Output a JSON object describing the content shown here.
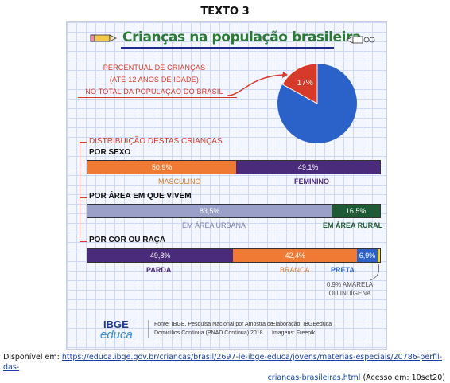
{
  "heading": "TEXTO 3",
  "infographic": {
    "title": "Crianças na população brasileira",
    "pct_label_lines": [
      "PERCENTUAL DE CRIANÇAS",
      "(ATÉ 12 ANOS DE IDADE)",
      "NO TOTAL DA POPULAÇÃO DO BRASIL"
    ],
    "pie": {
      "children_pct": 17,
      "label": "17%",
      "colors": {
        "children": "#d63a2a",
        "rest": "#2b62c9"
      }
    },
    "dist_label": "DISTRIBUIÇÃO DESTAS CRIANÇAS",
    "by_sex": {
      "title": "POR SEXO",
      "segments": [
        {
          "value_label": "50,9%",
          "value": 50.9,
          "name": "MASCULINO",
          "color": "#f07a33"
        },
        {
          "value_label": "49,1%",
          "value": 49.1,
          "name": "FEMININO",
          "color": "#4a2a7a"
        }
      ]
    },
    "by_area": {
      "title": "POR ÁREA EM QUE VIVEM",
      "segments": [
        {
          "value_label": "83,5%",
          "value": 83.5,
          "name": "EM ÁREA URBANA",
          "color": "#9aa0c8"
        },
        {
          "value_label": "16,5%",
          "value": 16.5,
          "name": "EM ÁREA RURAL",
          "color": "#1e5a33"
        }
      ]
    },
    "by_race": {
      "title": "POR COR OU RAÇA",
      "segments": [
        {
          "value_label": "49,8%",
          "value": 49.8,
          "name": "PARDA",
          "color": "#4a2a7a"
        },
        {
          "value_label": "42,4%",
          "value": 42.4,
          "name": "BRANCA",
          "color": "#f07a33"
        },
        {
          "value_label": "6,9%",
          "value": 6.9,
          "name": "PRETA",
          "color": "#2b62c9"
        },
        {
          "value_label": "",
          "value": 0.9,
          "name": "",
          "color": "#f2d233"
        }
      ],
      "note_lines": [
        "0,9% AMARELA",
        "OU INDÍGENA"
      ]
    },
    "logo": {
      "ibge": "IBGE",
      "educa": "educa"
    },
    "source_lines": [
      "Fonte: IBGE, Pesquisa Nacional por Amostra de",
      "Domicílios Contínua (PNAD Contínua) 2018"
    ],
    "credit_lines": [
      "Elaboração: IBGEeduca",
      "Imagens: Freepik"
    ]
  },
  "footer": {
    "prefix": "Disponível em:",
    "url_part1": "https://educa.ibge.gov.br/criancas/brasil/2697-ie-ibge-educa/jovens/materias-especiais/20786-perfil-das-",
    "url_part2": "criancas-brasileiras.html",
    "suffix": "(Acesso em: 10set20)"
  }
}
